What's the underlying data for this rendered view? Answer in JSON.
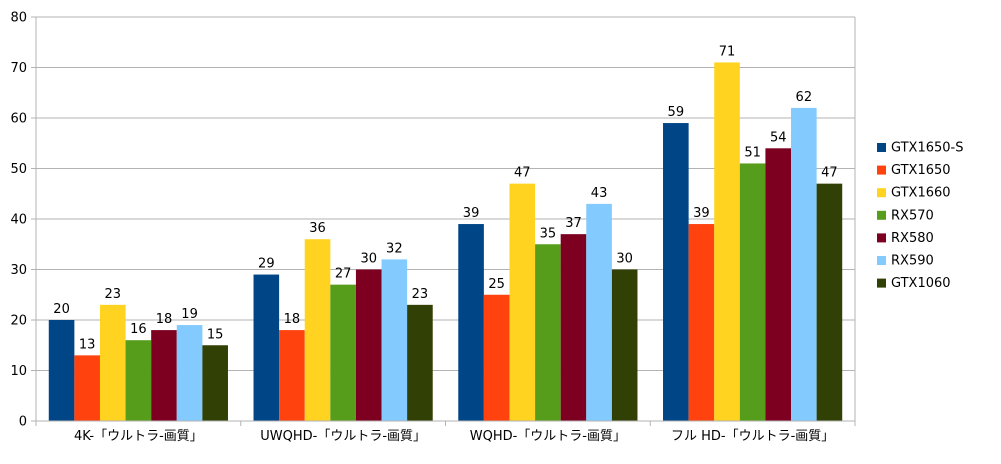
{
  "chart_data": {
    "type": "bar",
    "categories": [
      "4K-「ウルトラ-画質」",
      "UWQHD-「ウルトラ-画質」",
      "WQHD-「ウルトラ-画質」",
      "フル HD-「ウルトラ-画質」"
    ],
    "ylim": [
      0,
      80
    ],
    "yticks": [
      0,
      10,
      20,
      30,
      40,
      50,
      60,
      70,
      80
    ],
    "grid": true,
    "legend_position": "right",
    "series": [
      {
        "name": "GTX1650-S",
        "color": "#004586",
        "values": [
          20,
          29,
          39,
          59
        ]
      },
      {
        "name": "GTX1650",
        "color": "#ff420e",
        "values": [
          13,
          18,
          25,
          39
        ]
      },
      {
        "name": "GTX1660",
        "color": "#ffd320",
        "values": [
          23,
          36,
          47,
          71
        ]
      },
      {
        "name": "RX570",
        "color": "#579d1c",
        "values": [
          16,
          27,
          35,
          51
        ]
      },
      {
        "name": "RX580",
        "color": "#7e0021",
        "values": [
          18,
          30,
          37,
          54
        ]
      },
      {
        "name": "RX590",
        "color": "#83caff",
        "values": [
          19,
          32,
          43,
          62
        ]
      },
      {
        "name": "GTX1060",
        "color": "#314004",
        "values": [
          15,
          23,
          30,
          47
        ]
      }
    ]
  }
}
